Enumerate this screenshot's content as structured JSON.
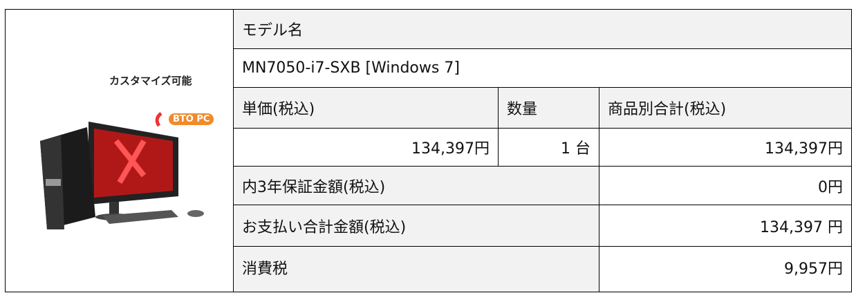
{
  "product": {
    "tagline": "カスタマイズ可能",
    "badge": "BTO PC"
  },
  "table": {
    "model_header": "モデル名",
    "model": "MN7050-i7-SXB [Windows 7]",
    "headers": [
      "単価(税込)",
      "数量",
      "商品別合計(税込)"
    ],
    "values": [
      "134,397円",
      "1 台",
      "134,397円"
    ],
    "rows": [
      [
        "内3年保証金額(税込)",
        "0円"
      ],
      [
        "お支払い合計金額(税込)",
        "134,397 円"
      ],
      [
        "消費税",
        "9,957円"
      ]
    ]
  }
}
